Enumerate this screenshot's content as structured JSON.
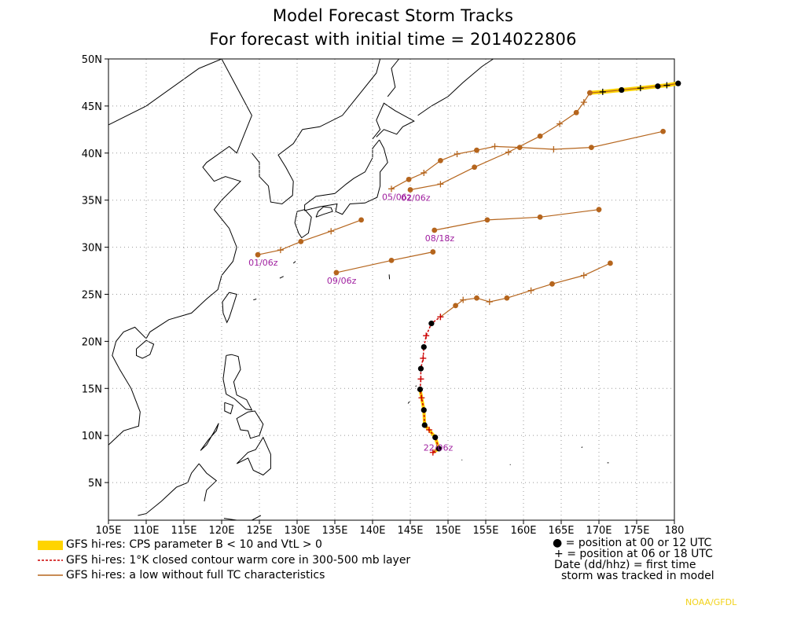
{
  "title": {
    "line1": "Model Forecast Storm Tracks",
    "line2": "For forecast with initial time = 2014022806"
  },
  "map": {
    "lon_range": [
      105,
      180
    ],
    "lat_range": [
      1,
      50
    ],
    "lon_ticks": [
      {
        "value": 105,
        "label": "105E"
      },
      {
        "value": 110,
        "label": "110E"
      },
      {
        "value": 115,
        "label": "115E"
      },
      {
        "value": 120,
        "label": "120E"
      },
      {
        "value": 125,
        "label": "125E"
      },
      {
        "value": 130,
        "label": "130E"
      },
      {
        "value": 135,
        "label": "135E"
      },
      {
        "value": 140,
        "label": "140E"
      },
      {
        "value": 145,
        "label": "145E"
      },
      {
        "value": 150,
        "label": "150E"
      },
      {
        "value": 155,
        "label": "155E"
      },
      {
        "value": 160,
        "label": "160E"
      },
      {
        "value": 165,
        "label": "165E"
      },
      {
        "value": 170,
        "label": "170E"
      },
      {
        "value": 175,
        "label": "175E"
      },
      {
        "value": 180,
        "label": "180"
      }
    ],
    "lat_ticks": [
      {
        "value": 5,
        "label": "5N"
      },
      {
        "value": 10,
        "label": "10N"
      },
      {
        "value": 15,
        "label": "15N"
      },
      {
        "value": 20,
        "label": "20N"
      },
      {
        "value": 25,
        "label": "25N"
      },
      {
        "value": 30,
        "label": "30N"
      },
      {
        "value": 35,
        "label": "35N"
      },
      {
        "value": 40,
        "label": "40N"
      },
      {
        "value": 45,
        "label": "45N"
      },
      {
        "value": 50,
        "label": "50N"
      }
    ],
    "grid": true,
    "colors": {
      "track_low": "#b5651d",
      "dot_low": "#b5651d",
      "cps": "#ffd400",
      "warm_core": "#cc0000",
      "dot_tc": "#000000",
      "date_label": "#a020a0",
      "coast": "#000000"
    }
  },
  "chart_data": {
    "type": "map-tracks",
    "tracks": [
      {
        "kind": "low",
        "label": "01/06z",
        "points": [
          [
            124.8,
            29.2,
            "dot"
          ],
          [
            127.8,
            29.7,
            "plus"
          ],
          [
            130.5,
            30.6,
            "dot"
          ],
          [
            134.5,
            31.7,
            "plus"
          ],
          [
            138.5,
            32.9,
            "dot"
          ]
        ]
      },
      {
        "kind": "low",
        "label": "09/06z",
        "points": [
          [
            135.2,
            27.3,
            "dot"
          ],
          [
            142.5,
            28.6,
            "dot"
          ],
          [
            148.0,
            29.5,
            "dot"
          ]
        ]
      },
      {
        "kind": "low",
        "label": "08/18z",
        "points": [
          [
            148.2,
            31.8,
            "dot"
          ],
          [
            155.2,
            32.9,
            "dot"
          ],
          [
            162.2,
            33.2,
            "dot"
          ],
          [
            170.0,
            34.0,
            "dot"
          ]
        ]
      },
      {
        "kind": "low",
        "label": "05/06z",
        "points": [
          [
            142.5,
            36.2,
            "plus"
          ],
          [
            144.8,
            37.2,
            "dot"
          ],
          [
            146.8,
            37.9,
            "plus"
          ],
          [
            149.0,
            39.2,
            "dot"
          ],
          [
            151.2,
            39.9,
            "plus"
          ],
          [
            153.8,
            40.3,
            "dot"
          ],
          [
            156.2,
            40.7,
            "plus"
          ],
          [
            159.5,
            40.6,
            "dot"
          ],
          [
            164.0,
            40.4,
            "plus"
          ],
          [
            169.0,
            40.6,
            "dot"
          ],
          [
            178.5,
            42.3,
            "dot"
          ]
        ]
      },
      {
        "kind": "low",
        "label": "02/06z",
        "points": [
          [
            145.0,
            36.1,
            "dot"
          ],
          [
            149.0,
            36.7,
            "plus"
          ],
          [
            153.5,
            38.5,
            "dot"
          ],
          [
            158.0,
            40.1,
            "plus"
          ],
          [
            162.2,
            41.8,
            "dot"
          ],
          [
            164.8,
            43.1,
            "plus"
          ],
          [
            167.0,
            44.3,
            "dot"
          ],
          [
            168.0,
            45.4,
            "plus"
          ],
          [
            168.8,
            46.4,
            "dot"
          ]
        ]
      },
      {
        "kind": "cps",
        "label": "",
        "points": [
          [
            168.8,
            46.4,
            "dot"
          ],
          [
            170.5,
            46.5,
            "plus"
          ],
          [
            173.0,
            46.7,
            "dotblack"
          ],
          [
            175.5,
            46.9,
            "plus"
          ],
          [
            177.8,
            47.1,
            "dotblack"
          ],
          [
            179.0,
            47.2,
            "plus"
          ],
          [
            180.5,
            47.4,
            "dotblack"
          ]
        ]
      },
      {
        "kind": "low",
        "label": "",
        "points": [
          [
            149.0,
            22.6,
            "plus"
          ],
          [
            151.0,
            23.8,
            "dot"
          ],
          [
            152.0,
            24.4,
            "plus"
          ],
          [
            153.8,
            24.6,
            "dot"
          ],
          [
            155.5,
            24.2,
            "plus"
          ],
          [
            157.8,
            24.6,
            "dot"
          ],
          [
            161.0,
            25.4,
            "plus"
          ],
          [
            163.8,
            26.1,
            "dot"
          ],
          [
            168.0,
            27.0,
            "plus"
          ],
          [
            171.5,
            28.3,
            "dot"
          ]
        ]
      },
      {
        "kind": "tc",
        "label": "22/06z",
        "points": [
          [
            148.0,
            8.2,
            "plus"
          ],
          [
            148.8,
            8.6,
            "dotblack"
          ],
          [
            148.3,
            9.8,
            "dotblack"
          ],
          [
            147.5,
            10.6,
            "plus"
          ],
          [
            146.9,
            11.1,
            "dotblack"
          ],
          [
            146.8,
            12.7,
            "dotblack"
          ],
          [
            146.5,
            14.0,
            "plus"
          ],
          [
            146.3,
            14.9,
            "dotblack"
          ],
          [
            146.4,
            16.0,
            "plus"
          ],
          [
            146.4,
            17.1,
            "dotblack"
          ],
          [
            146.7,
            18.2,
            "plus"
          ],
          [
            146.8,
            19.4,
            "dotblack"
          ],
          [
            147.1,
            20.6,
            "plus"
          ],
          [
            147.8,
            21.9,
            "dotblack"
          ],
          [
            149.0,
            22.6,
            "plus"
          ]
        ]
      }
    ],
    "label_positions_note": "Track labels printed at track starts"
  },
  "legend": {
    "items": [
      {
        "label": "GFS hi-res: CPS parameter B < 10 and VtL > 0",
        "style": "cps"
      },
      {
        "label": "GFS hi-res: 1°K closed contour warm core in 300-500 mb layer",
        "style": "warm_core"
      },
      {
        "label": "GFS hi-res: a low without full TC characteristics",
        "style": "low"
      }
    ],
    "symbols": [
      {
        "symbol": "●",
        "label": "= position at 00 or 12 UTC"
      },
      {
        "symbol": "+",
        "label": "= position at 06 or 18 UTC"
      },
      {
        "symbol": "",
        "label": "Date (dd/hhz)  = first time"
      },
      {
        "symbol": "",
        "label": "storm was tracked in model"
      }
    ]
  },
  "credit": "NOAA/GFDL"
}
